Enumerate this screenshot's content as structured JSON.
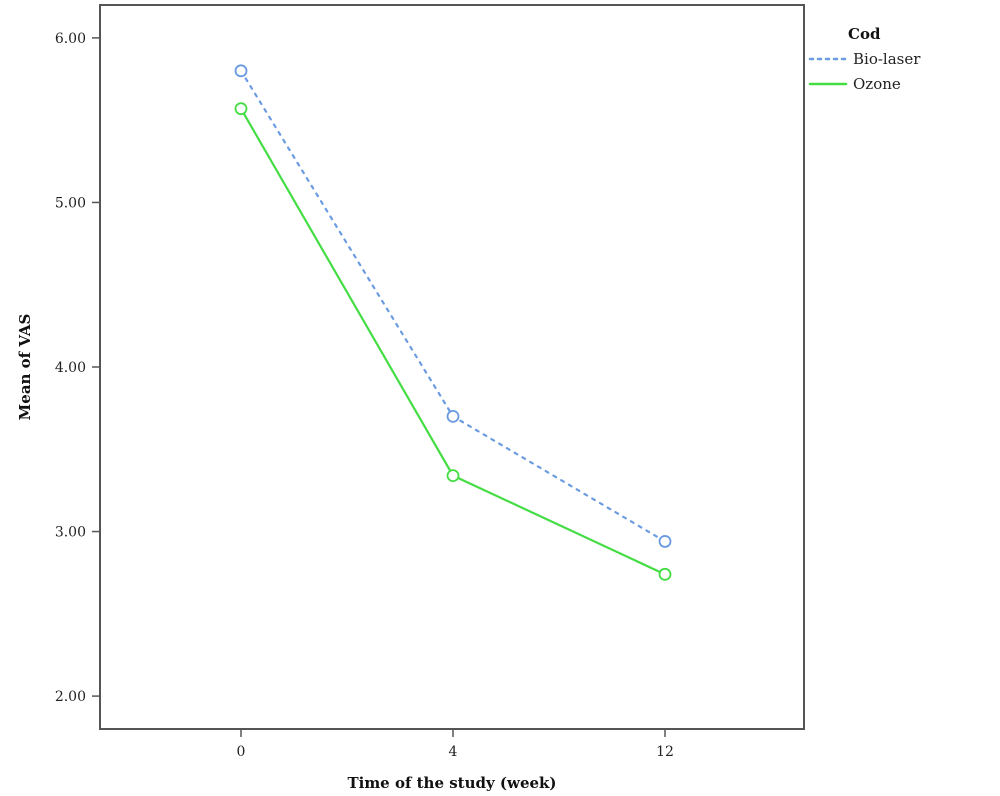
{
  "chart_data": {
    "type": "line",
    "xlabel": "Time of the study (week)",
    "ylabel": "Mean of VAS",
    "x": [
      "0",
      "4",
      "12"
    ],
    "ylim": [
      1.8,
      6.2
    ],
    "yticks": [
      "2.00",
      "3.00",
      "4.00",
      "5.00",
      "6.00"
    ],
    "grid": false,
    "legend": {
      "title": "Cod",
      "position": "top-right outside"
    },
    "series": [
      {
        "name": "Bio-laser",
        "values": [
          5.8,
          3.7,
          2.94
        ],
        "color": "#6b9be0",
        "dash": "dotted",
        "marker": "circle"
      },
      {
        "name": "Ozone",
        "values": [
          5.57,
          3.34,
          2.74
        ],
        "color": "#44dd44",
        "dash": "solid",
        "marker": "circle"
      }
    ]
  }
}
